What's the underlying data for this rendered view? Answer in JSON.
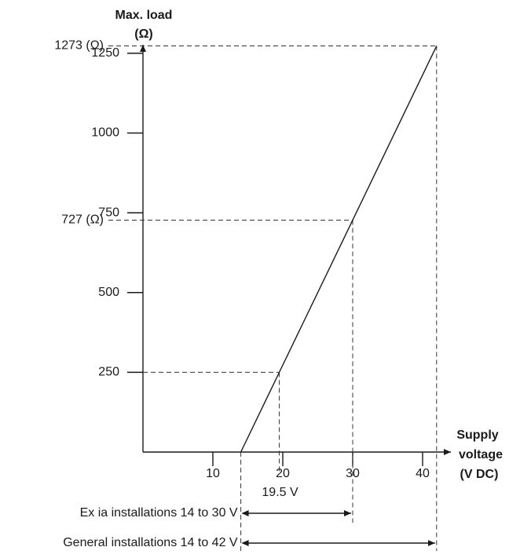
{
  "chart_data": {
    "type": "line",
    "title": "",
    "ylabel_line1": "Max. load",
    "ylabel_line2": "(Ω)",
    "xlabel_line1": "Supply",
    "xlabel_line2": "voltage",
    "xlabel_line3": "(V DC)",
    "xlim": [
      0,
      42
    ],
    "ylim": [
      0,
      1273
    ],
    "x_ticks": [
      {
        "value": 10,
        "label": "10"
      },
      {
        "value": 20,
        "label": "20"
      },
      {
        "value": 30,
        "label": "30"
      },
      {
        "value": 40,
        "label": "40"
      }
    ],
    "y_ticks": [
      {
        "value": 250,
        "label": "250"
      },
      {
        "value": 500,
        "label": "500"
      },
      {
        "value": 750,
        "label": "750"
      },
      {
        "value": 1000,
        "label": "1000"
      },
      {
        "value": 1250,
        "label": "1250"
      }
    ],
    "series": [
      {
        "x": [
          14,
          19.5,
          30,
          42
        ],
        "y": [
          0,
          250,
          727,
          1273
        ]
      }
    ],
    "reference_points": [
      {
        "x": 19.5,
        "y": 250,
        "x_label": "19.5 V",
        "y_label": ""
      },
      {
        "x": 30,
        "y": 727,
        "x_label": "",
        "y_label": "727 (Ω)"
      },
      {
        "x": 42,
        "y": 1273,
        "x_label": "",
        "y_label": "1273 (Ω)"
      }
    ],
    "ranges": [
      {
        "label": "Ex ia installations 14 to 30 V",
        "from": 14,
        "to": 30
      },
      {
        "label": "General installations 14 to 42 V",
        "from": 14,
        "to": 42
      }
    ],
    "grid": false,
    "line_color": "#1a1a1a",
    "dash_color": "#333333"
  }
}
